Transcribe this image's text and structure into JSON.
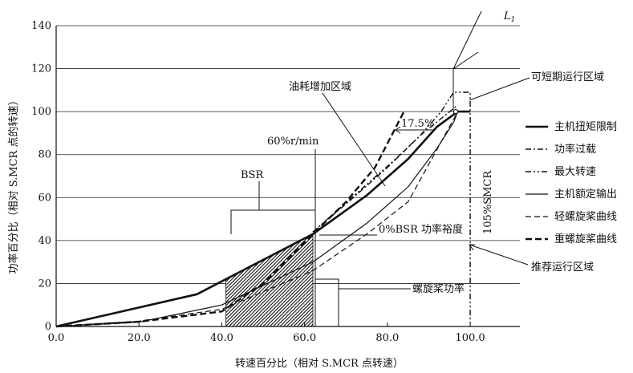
{
  "chart_data": {
    "type": "line",
    "xlabel": "转速百分比（相对 S.MCR 点转速）",
    "ylabel": "功率百分比（相对 S.MCR 点的转速）",
    "xlim": [
      0,
      112
    ],
    "ylim": [
      0,
      140
    ],
    "x_ticks": [
      "0.0",
      "20.0",
      "40.0",
      "60.0",
      "80.0",
      "100.0"
    ],
    "y_ticks": [
      "0",
      "20",
      "40",
      "60",
      "80",
      "100",
      "120",
      "140"
    ],
    "grid": "horizontal",
    "legend_position": "right",
    "series": [
      {
        "name": "主机扭矩限制",
        "style": "thick-solid",
        "points": [
          [
            0,
            0
          ],
          [
            34,
            15
          ],
          [
            62,
            43
          ],
          [
            75,
            61
          ],
          [
            85,
            78
          ],
          [
            92,
            93
          ],
          [
            97,
            100
          ],
          [
            100,
            100
          ]
        ]
      },
      {
        "name": "功率过载",
        "style": "dash-dot",
        "points": [
          [
            62,
            44
          ],
          [
            70,
            57
          ],
          [
            80,
            74
          ],
          [
            88,
            89
          ],
          [
            97,
            103
          ]
        ]
      },
      {
        "name": "最大转速",
        "style": "dash-dot-dot",
        "points": [
          [
            62,
            44
          ],
          [
            72,
            61
          ],
          [
            82,
            78
          ],
          [
            88,
            89
          ],
          [
            93,
            100
          ],
          [
            96,
            109
          ],
          [
            100,
            109
          ],
          [
            100,
            0
          ]
        ]
      },
      {
        "name": "主机额定输出",
        "style": "thin-solid",
        "points": [
          [
            0,
            0
          ],
          [
            20,
            2
          ],
          [
            40,
            10
          ],
          [
            62,
            30
          ],
          [
            75,
            48
          ],
          [
            85,
            65
          ],
          [
            92,
            83
          ],
          [
            96,
            95
          ],
          [
            97,
            100
          ]
        ]
      },
      {
        "name": "轻螺旋桨曲线",
        "style": "thin-dash",
        "points": [
          [
            0,
            0
          ],
          [
            20,
            2.5
          ],
          [
            40,
            8
          ],
          [
            62,
            26
          ],
          [
            75,
            43
          ],
          [
            85,
            58
          ],
          [
            97,
            100
          ]
        ]
      },
      {
        "name": "重螺旋桨曲线",
        "style": "thick-dash",
        "points": [
          [
            0,
            0
          ],
          [
            20,
            2.2
          ],
          [
            40,
            7
          ],
          [
            50,
            20
          ],
          [
            62,
            43
          ],
          [
            70,
            58
          ],
          [
            77,
            74
          ],
          [
            84,
            100
          ]
        ]
      }
    ],
    "markers": [
      {
        "label": "",
        "x": 96.5,
        "y": 100
      }
    ],
    "shaded_region": {
      "label": "BSR",
      "x_range": [
        41,
        62
      ]
    },
    "annotations": {
      "L1": "L",
      "L1_sub": "1",
      "fuel_region": "油耗增加区域",
      "short_term": "可短期运行区域",
      "bsr": "BSR",
      "speed_60": "60%r/min",
      "percent_175": "17.5%",
      "bsr_margin": "0%BSR 功率裕度",
      "smcr_105": "105%SMCR",
      "recommended": "推荐运行区域",
      "propeller_power": "螺旋桨功率"
    }
  }
}
